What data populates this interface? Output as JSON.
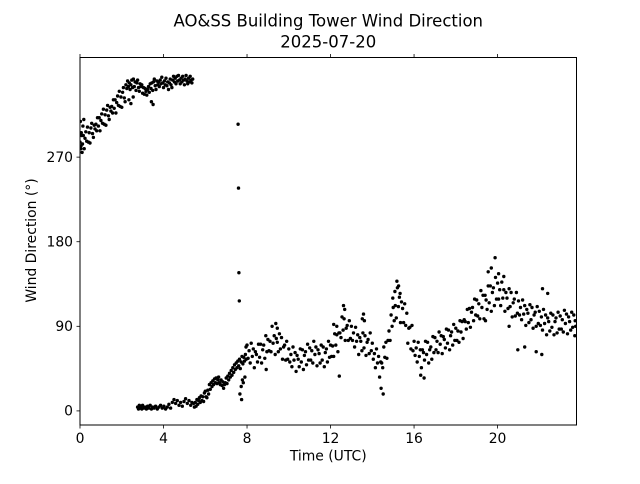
{
  "figure": {
    "title_line1": "AO&SS Building Tower Wind Direction",
    "title_line2": "2025-07-20",
    "background_color": "#ffffff",
    "foreground_color": "#000000"
  },
  "chart_data": {
    "type": "scatter",
    "title": "AO&SS Building Tower Wind Direction\n2025-07-20",
    "xlabel": "Time (UTC)",
    "ylabel": "Wind Direction (°)",
    "xlim": [
      0,
      23.78
    ],
    "ylim": [
      -15,
      376
    ],
    "xticks": [
      0,
      4,
      8,
      12,
      16,
      20
    ],
    "yticks": [
      0,
      90,
      180,
      270
    ],
    "grid": false,
    "legend": "none",
    "ticks_top": true,
    "ticks_right": false,
    "marker": {
      "color": "#000000",
      "radius": 1.7
    },
    "series": [
      {
        "name": "wind_direction_deg_vs_hour_utc",
        "points_flat": [
          0.02,
          308,
          0.05,
          282,
          0.06,
          296,
          0.1,
          275,
          0.14,
          303,
          0.18,
          310,
          0.0,
          286,
          0.04,
          279,
          0.08,
          293,
          0.12,
          284,
          0.16,
          293,
          0.2,
          279,
          0.24,
          290,
          0.28,
          297,
          0.32,
          287,
          0.36,
          302,
          0.4,
          286,
          0.44,
          296,
          0.48,
          285,
          0.52,
          301,
          0.56,
          306,
          0.6,
          295,
          0.64,
          291,
          0.68,
          304,
          0.72,
          300,
          0.76,
          305,
          0.8,
          298,
          0.84,
          312,
          0.88,
          303,
          0.92,
          312,
          0.96,
          298,
          1.0,
          309,
          1.04,
          316,
          1.08,
          306,
          1.12,
          321,
          1.16,
          305,
          1.2,
          315,
          1.24,
          304,
          1.28,
          320,
          1.32,
          325,
          1.36,
          314,
          1.4,
          310,
          1.44,
          323,
          1.48,
          319,
          1.52,
          324,
          1.56,
          317,
          1.6,
          331,
          1.64,
          322,
          1.68,
          331,
          1.72,
          317,
          1.76,
          328,
          1.8,
          335,
          1.84,
          325,
          1.88,
          340,
          1.92,
          324,
          1.96,
          334,
          2.0,
          323,
          2.04,
          339,
          2.08,
          344,
          2.12,
          333,
          2.16,
          329,
          2.2,
          347,
          2.24,
          343,
          2.28,
          351,
          2.32,
          345,
          2.36,
          349,
          2.4,
          342,
          2.44,
          347,
          2.48,
          352,
          2.52,
          344,
          2.56,
          353,
          2.6,
          345,
          2.64,
          350,
          2.68,
          341,
          2.72,
          349,
          2.76,
          352,
          2.8,
          344,
          2.84,
          340,
          2.88,
          348,
          2.92,
          345,
          2.96,
          347,
          3.0,
          338,
          3.04,
          344,
          3.08,
          337,
          3.12,
          343,
          3.16,
          340,
          3.2,
          336,
          3.24,
          342,
          3.28,
          345,
          3.32,
          339,
          3.36,
          348,
          3.4,
          343,
          3.44,
          349,
          3.48,
          341,
          3.52,
          350,
          3.56,
          353,
          3.6,
          346,
          3.64,
          342,
          3.68,
          351,
          3.72,
          347,
          3.76,
          350,
          3.8,
          345,
          3.84,
          352,
          3.88,
          348,
          3.92,
          355,
          3.96,
          349,
          4.0,
          344,
          4.04,
          351,
          4.08,
          347,
          4.12,
          354,
          4.16,
          346,
          4.2,
          350,
          4.24,
          342,
          4.28,
          349,
          4.32,
          353,
          4.36,
          347,
          4.4,
          344,
          4.44,
          352,
          4.48,
          356,
          4.52,
          350,
          4.56,
          354,
          4.6,
          348,
          4.64,
          356,
          4.68,
          351,
          4.72,
          357,
          4.76,
          352,
          4.8,
          348,
          4.84,
          354,
          4.88,
          350,
          4.92,
          356,
          4.96,
          352,
          5.0,
          347,
          5.04,
          353,
          5.08,
          357,
          5.12,
          351,
          5.16,
          348,
          5.2,
          354,
          5.24,
          350,
          5.28,
          356,
          5.32,
          352,
          5.36,
          349,
          5.4,
          353,
          2.34,
          331,
          2.44,
          327,
          2.55,
          334,
          3.42,
          329,
          3.5,
          326,
          2.76,
          4,
          2.8,
          2,
          2.84,
          6,
          2.88,
          3,
          2.92,
          5,
          2.96,
          2,
          3.0,
          6,
          3.06,
          3,
          3.12,
          4,
          3.18,
          2,
          3.24,
          5,
          3.3,
          3,
          3.36,
          6,
          3.42,
          2,
          3.48,
          4,
          3.55,
          3,
          3.62,
          5,
          3.7,
          2,
          3.78,
          4,
          3.86,
          6,
          3.94,
          3,
          4.02,
          5,
          4.1,
          2,
          4.18,
          4,
          4.26,
          7,
          4.34,
          3,
          4.42,
          9,
          4.5,
          12,
          4.58,
          8,
          4.66,
          11,
          4.74,
          6,
          4.82,
          9,
          4.9,
          5,
          4.98,
          10,
          5.06,
          13,
          5.14,
          8,
          5.22,
          11,
          5.3,
          6,
          5.36,
          9,
          5.44,
          8,
          5.48,
          4,
          5.52,
          9,
          5.56,
          5,
          5.6,
          12,
          5.64,
          7,
          5.68,
          11,
          5.72,
          14,
          5.76,
          9,
          5.8,
          16,
          5.84,
          11,
          5.88,
          15,
          5.92,
          10,
          5.96,
          19,
          6.0,
          21,
          6.04,
          15,
          6.08,
          14,
          6.12,
          22,
          6.16,
          18,
          6.2,
          28,
          6.24,
          23,
          6.28,
          30,
          6.32,
          26,
          6.36,
          32,
          6.4,
          28,
          6.44,
          34,
          6.48,
          30,
          6.52,
          35,
          6.56,
          29,
          6.6,
          33,
          6.64,
          36,
          6.68,
          30,
          6.72,
          28,
          6.76,
          33,
          6.8,
          27,
          6.84,
          31,
          6.88,
          24,
          6.92,
          28,
          6.96,
          30,
          7.0,
          35,
          7.04,
          29,
          7.08,
          37,
          7.12,
          33,
          7.16,
          40,
          7.2,
          36,
          7.24,
          43,
          7.28,
          38,
          7.32,
          46,
          7.36,
          41,
          7.4,
          49,
          7.44,
          44,
          7.48,
          51,
          7.52,
          46,
          7.56,
          53,
          7.6,
          48,
          7.64,
          55,
          7.68,
          45,
          7.72,
          52,
          7.76,
          58,
          7.8,
          50,
          7.84,
          57,
          7.88,
          53,
          7.92,
          60,
          7.96,
          55,
          7.57,
          305,
          7.59,
          237,
          7.61,
          147,
          7.63,
          117,
          7.66,
          18,
          7.74,
          12,
          7.72,
          26,
          7.78,
          33,
          7.82,
          30,
          7.9,
          36,
          7.95,
          68,
          8.0,
          70,
          8.05,
          56,
          8.1,
          64,
          8.15,
          51,
          8.2,
          72,
          8.25,
          58,
          8.3,
          66,
          8.35,
          46,
          8.4,
          63,
          8.45,
          60,
          8.5,
          52,
          8.55,
          71,
          8.6,
          57,
          8.65,
          71,
          8.7,
          51,
          8.75,
          65,
          8.8,
          70,
          8.85,
          56,
          8.9,
          80,
          8.95,
          63,
          9.0,
          76,
          9.05,
          64,
          9.1,
          74,
          9.15,
          63,
          9.2,
          90,
          9.25,
          72,
          9.3,
          80,
          9.35,
          60,
          9.4,
          77,
          9.45,
          73,
          9.5,
          63,
          9.55,
          82,
          9.6,
          66,
          9.65,
          78,
          9.7,
          55,
          9.75,
          68,
          9.8,
          70,
          9.85,
          54,
          9.9,
          74,
          9.95,
          55,
          10.0,
          66,
          10.05,
          52,
          10.1,
          60,
          10.15,
          47,
          10.2,
          68,
          10.25,
          54,
          10.3,
          62,
          10.35,
          42,
          10.4,
          59,
          10.45,
          55,
          10.5,
          47,
          10.55,
          66,
          10.6,
          52,
          10.65,
          65,
          10.7,
          44,
          10.75,
          59,
          10.8,
          63,
          10.85,
          49,
          10.9,
          71,
          10.95,
          54,
          11.0,
          67,
          11.05,
          54,
          11.1,
          64,
          11.15,
          51,
          11.2,
          74,
          11.25,
          60,
          11.3,
          68,
          11.35,
          48,
          11.4,
          65,
          11.45,
          61,
          11.5,
          51,
          11.55,
          70,
          11.6,
          54,
          11.65,
          68,
          11.7,
          47,
          11.75,
          62,
          11.8,
          66,
          11.85,
          52,
          11.9,
          74,
          11.95,
          57,
          12.0,
          70,
          12.05,
          58,
          12.1,
          69,
          12.15,
          58,
          12.2,
          82,
          12.25,
          70,
          12.3,
          81,
          12.35,
          63,
          12.4,
          83,
          12.45,
          83,
          12.5,
          78,
          12.55,
          100,
          12.6,
          86,
          12.65,
          98,
          12.7,
          75,
          12.75,
          88,
          12.8,
          91,
          12.85,
          75,
          12.9,
          96,
          12.95,
          77,
          13.0,
          90,
          13.05,
          75,
          13.1,
          83,
          13.15,
          68,
          13.2,
          89,
          13.25,
          74,
          13.3,
          81,
          13.35,
          60,
          13.4,
          78,
          13.45,
          74,
          13.5,
          64,
          13.55,
          83,
          13.6,
          67,
          13.65,
          80,
          13.7,
          59,
          13.75,
          73,
          13.8,
          76,
          13.85,
          61,
          13.9,
          83,
          13.95,
          64,
          14.0,
          72,
          14.05,
          55,
          14.1,
          61,
          14.15,
          46,
          14.2,
          66,
          14.25,
          51,
          14.3,
          58,
          14.35,
          36,
          14.4,
          52,
          14.45,
          51,
          14.5,
          46,
          14.55,
          68,
          14.6,
          57,
          14.65,
          73,
          14.7,
          56,
          14.75,
          75,
          14.8,
          85,
          14.85,
          75,
          14.9,
          102,
          14.95,
          90,
          15.0,
          110,
          15.05,
          96,
          15.1,
          112,
          15.15,
          99,
          15.2,
          131,
          15.25,
          111,
          15.3,
          121,
          15.35,
          94,
          15.4,
          116,
          15.45,
          109,
          15.5,
          94,
          15.55,
          114,
          15.6,
          91,
          15.65,
          104,
          15.7,
          72,
          15.75,
          88,
          15.8,
          89,
          15.85,
          66,
          15.9,
          91,
          15.95,
          64,
          16.0,
          74,
          16.05,
          59,
          16.1,
          67,
          16.15,
          52,
          16.2,
          73,
          16.25,
          58,
          16.3,
          65,
          16.35,
          46,
          16.4,
          65,
          16.45,
          62,
          16.5,
          54,
          16.55,
          74,
          16.6,
          60,
          16.65,
          73,
          16.7,
          51,
          16.75,
          65,
          16.8,
          68,
          16.85,
          55,
          16.9,
          79,
          16.95,
          62,
          17.0,
          78,
          17.05,
          65,
          17.1,
          74,
          17.15,
          62,
          17.2,
          84,
          17.25,
          71,
          17.3,
          80,
          17.35,
          61,
          17.4,
          79,
          17.45,
          76,
          17.5,
          67,
          17.55,
          87,
          17.6,
          72,
          17.65,
          86,
          17.7,
          65,
          17.75,
          80,
          17.8,
          84,
          17.85,
          70,
          17.9,
          92,
          17.95,
          75,
          18.0,
          88,
          18.05,
          75,
          18.1,
          85,
          18.15,
          73,
          18.2,
          96,
          18.25,
          84,
          18.3,
          95,
          18.35,
          77,
          18.4,
          97,
          18.45,
          95,
          18.5,
          87,
          18.55,
          108,
          18.6,
          94,
          18.65,
          109,
          18.7,
          89,
          18.75,
          105,
          18.8,
          110,
          18.85,
          96,
          18.9,
          119,
          18.95,
          102,
          19.0,
          118,
          19.05,
          101,
          19.1,
          114,
          19.15,
          98,
          19.2,
          128,
          19.25,
          110,
          19.3,
          123,
          19.35,
          98,
          19.4,
          123,
          19.45,
          118,
          19.5,
          108,
          19.55,
          133,
          19.6,
          115,
          19.65,
          133,
          19.7,
          106,
          19.75,
          126,
          19.8,
          131,
          19.85,
          112,
          19.9,
          142,
          19.95,
          119,
          20.0,
          136,
          20.05,
          119,
          20.1,
          129,
          20.15,
          112,
          20.2,
          137,
          20.25,
          120,
          20.3,
          129,
          20.35,
          106,
          20.4,
          126,
          20.45,
          120,
          20.5,
          109,
          20.55,
          130,
          20.6,
          111,
          20.65,
          126,
          20.7,
          100,
          20.75,
          115,
          20.8,
          119,
          20.85,
          101,
          20.9,
          126,
          20.95,
          104,
          21.0,
          117,
          21.05,
          102,
          21.1,
          110,
          21.15,
          97,
          21.2,
          118,
          21.25,
          103,
          21.3,
          112,
          21.35,
          91,
          21.4,
          108,
          21.45,
          104,
          21.5,
          94,
          21.55,
          113,
          21.6,
          97,
          21.65,
          110,
          21.7,
          88,
          21.75,
          102,
          21.8,
          105,
          21.85,
          90,
          21.9,
          111,
          21.95,
          93,
          22.0,
          106,
          22.05,
          91,
          22.1,
          100,
          22.15,
          86,
          22.2,
          108,
          22.25,
          93,
          22.3,
          102,
          22.35,
          81,
          22.4,
          99,
          22.45,
          95,
          22.5,
          85,
          22.55,
          104,
          22.6,
          89,
          22.65,
          102,
          22.7,
          81,
          22.75,
          95,
          22.8,
          99,
          22.85,
          83,
          22.9,
          105,
          22.95,
          87,
          23.0,
          101,
          23.05,
          87,
          23.1,
          97,
          23.15,
          84,
          23.2,
          107,
          23.25,
          93,
          23.3,
          103,
          23.35,
          82,
          23.4,
          100,
          23.45,
          95,
          23.5,
          86,
          23.55,
          105,
          23.6,
          89,
          23.65,
          102,
          23.7,
          80,
          8.92,
          44,
          9.38,
          93,
          9.45,
          88,
          12.15,
          92,
          12.3,
          90,
          12.42,
          37,
          12.62,
          112,
          12.68,
          108,
          13.52,
          98,
          13.58,
          103,
          13.62,
          96,
          14.42,
          24,
          14.52,
          18,
          14.98,
          120,
          15.08,
          127,
          15.18,
          138,
          15.26,
          133,
          15.33,
          125,
          16.32,
          38,
          16.48,
          35,
          19.42,
          96,
          19.55,
          148,
          19.7,
          152,
          19.88,
          163,
          20.05,
          146,
          20.3,
          143,
          20.55,
          90,
          20.97,
          65,
          21.3,
          68,
          21.85,
          63,
          22.12,
          60,
          22.15,
          130,
          22.4,
          125,
          23.72,
          96,
          23.74,
          90
        ]
      }
    ]
  }
}
